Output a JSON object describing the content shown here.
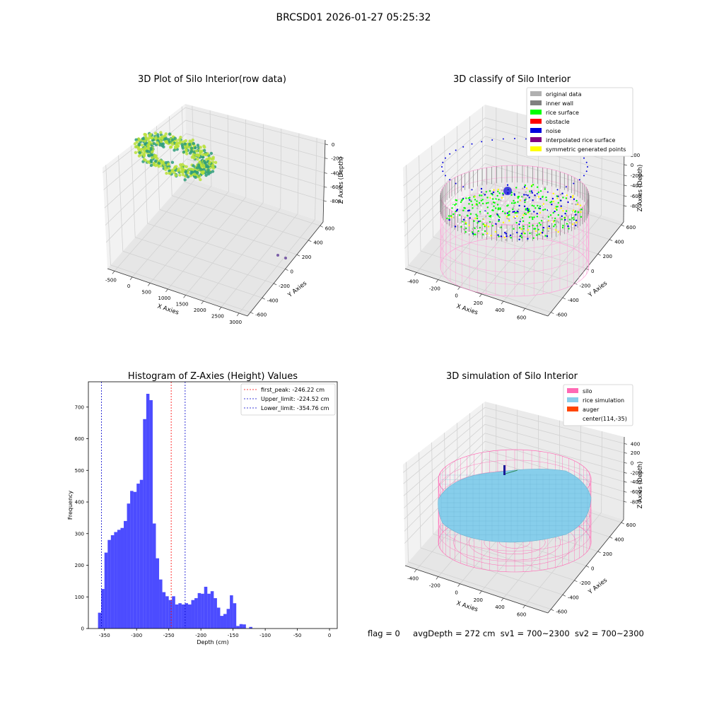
{
  "figure_title": "BRCSD01 2026-01-27 05:25:32",
  "footer": {
    "flag": "flag = 0",
    "avg_depth": "avgDepth = 272 cm",
    "sv1": "sv1 = 700~2300",
    "sv2": "sv2 = 700~2300"
  },
  "chart_data": [
    {
      "type": "scatter",
      "title": "3D Plot of Silo Interior(row data)",
      "xlabel": "X Axies",
      "ylabel": "Y Axies",
      "zlabel": "Z Axies (Depth)",
      "x_ticks": [
        "-500",
        "0",
        "500",
        "1000",
        "1500",
        "2000",
        "2500",
        "3000"
      ],
      "y_ticks": [
        "-600",
        "-400",
        "-200",
        "0",
        "200",
        "400",
        "600"
      ],
      "z_ticks": [
        "0",
        "-200",
        "-400",
        "-600",
        "-800"
      ],
      "xlim": [
        -600,
        3300
      ],
      "ylim": [
        -650,
        650
      ],
      "zlim": [
        -950,
        50
      ],
      "colors": {
        "point_dark": "#2e9e7a",
        "point_light": "#b8e03a",
        "outlier": "#7b5ea7"
      },
      "outliers": [
        {
          "x": 3000,
          "y": -250,
          "z": -880
        },
        {
          "x": 3150,
          "y": -180,
          "z": -890
        }
      ]
    },
    {
      "type": "scatter",
      "title": "3D classify of Silo Interior",
      "xlabel": "X Axies",
      "ylabel": "Y Axies",
      "zlabel": "Z Axies (Depth)",
      "x_ticks": [
        "-400",
        "-200",
        "0",
        "200",
        "400",
        "600"
      ],
      "y_ticks": [
        "-600",
        "-400",
        "-200",
        "0",
        "200",
        "400",
        "600"
      ],
      "z_ticks": [
        "200",
        "0",
        "-200",
        "-400",
        "-600",
        "-800"
      ],
      "legend_position": "top-right",
      "legend": [
        {
          "label": "original data",
          "color": "#b0b0b0"
        },
        {
          "label": "inner wall",
          "color": "#808080"
        },
        {
          "label": "rice surface",
          "color": "#00ff00"
        },
        {
          "label": "obstacle",
          "color": "#ff0000"
        },
        {
          "label": "noise",
          "color": "#0000dd"
        },
        {
          "label": "interpolated rice surface",
          "color": "#800080"
        },
        {
          "label": "symmetric generated points",
          "color": "#ffff00"
        }
      ]
    },
    {
      "type": "bar",
      "title": "Histogram of Z-Axies (Height) Values",
      "xlabel": "Depth (cm)",
      "ylabel": "Frequency",
      "xlim": [
        -375,
        12
      ],
      "ylim": [
        0,
        780
      ],
      "x_ticks": [
        -350,
        -300,
        -250,
        -200,
        -150,
        -100,
        -50,
        0
      ],
      "y_ticks": [
        0,
        100,
        200,
        300,
        400,
        500,
        600,
        700
      ],
      "bar_color": "#0000ff",
      "bins_start": -360,
      "bin_width": 5,
      "values": [
        50,
        125,
        240,
        280,
        295,
        305,
        312,
        318,
        340,
        395,
        435,
        432,
        458,
        470,
        662,
        742,
        722,
        332,
        222,
        155,
        115,
        102,
        90,
        102,
        76,
        80,
        76,
        80,
        76,
        90,
        96,
        112,
        110,
        132,
        110,
        118,
        96,
        66,
        40,
        46,
        62,
        105,
        80,
        8,
        14,
        13,
        0,
        5
      ],
      "lines": [
        {
          "label": "first_peak: -246.22 cm",
          "value": -246.22,
          "color": "#ff0000"
        },
        {
          "label": "Upper_limit: -224.52 cm",
          "value": -224.52,
          "color": "#0000cc"
        },
        {
          "label": "Lower_limit: -354.76 cm",
          "value": -354.76,
          "color": "#0000cc"
        }
      ],
      "legend_position": "top-right"
    },
    {
      "type": "scatter",
      "title": "3D simulation of Silo Interior",
      "xlabel": "X Axies",
      "ylabel": "Y Axies",
      "zlabel": "Z Axies (Depth)",
      "x_ticks": [
        "-400",
        "-200",
        "0",
        "200",
        "400",
        "600"
      ],
      "y_ticks": [
        "-600",
        "-400",
        "-200",
        "0",
        "200",
        "400",
        "600"
      ],
      "z_ticks": [
        "400",
        "200",
        "0",
        "-200",
        "-400",
        "-600",
        "-800"
      ],
      "legend_position": "top-right",
      "legend": [
        {
          "label": "silo",
          "color": "#ff69b4"
        },
        {
          "label": "rice simulation",
          "color": "#87ceeb"
        },
        {
          "label": "auger",
          "color": "#ff4500"
        },
        {
          "label": "center(114,-35)",
          "color": ""
        }
      ]
    }
  ]
}
